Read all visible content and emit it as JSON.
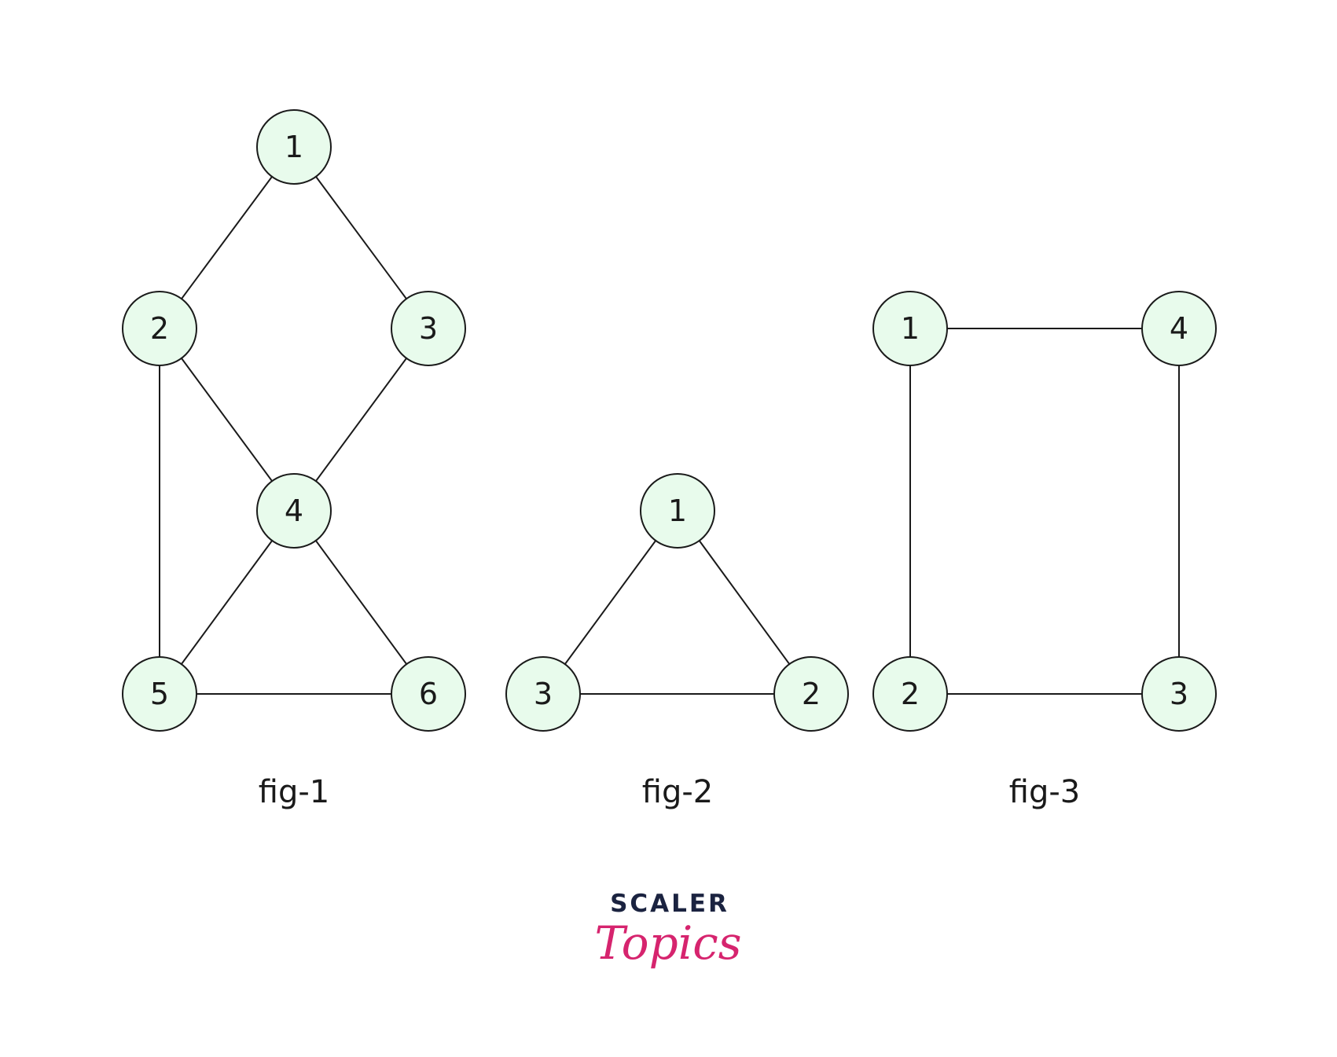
{
  "colors": {
    "node_fill": "#e8fbec",
    "stroke": "#1a1a1a",
    "brand_dark": "#1b2340",
    "brand_accent": "#d6246e"
  },
  "figures": [
    {
      "caption": "fig-1",
      "nodes": [
        {
          "id": "f1n1",
          "label": "1"
        },
        {
          "id": "f1n2",
          "label": "2"
        },
        {
          "id": "f1n3",
          "label": "3"
        },
        {
          "id": "f1n4",
          "label": "4"
        },
        {
          "id": "f1n5",
          "label": "5"
        },
        {
          "id": "f1n6",
          "label": "6"
        }
      ],
      "edges": [
        [
          "1",
          "2"
        ],
        [
          "1",
          "3"
        ],
        [
          "2",
          "4"
        ],
        [
          "3",
          "4"
        ],
        [
          "2",
          "5"
        ],
        [
          "4",
          "5"
        ],
        [
          "4",
          "6"
        ],
        [
          "5",
          "6"
        ]
      ]
    },
    {
      "caption": "fig-2",
      "nodes": [
        {
          "id": "f2n1",
          "label": "1"
        },
        {
          "id": "f2n3",
          "label": "3"
        },
        {
          "id": "f2n2",
          "label": "2"
        }
      ],
      "edges": [
        [
          "1",
          "3"
        ],
        [
          "1",
          "2"
        ],
        [
          "3",
          "2"
        ]
      ]
    },
    {
      "caption": "fig-3",
      "nodes": [
        {
          "id": "f3n1",
          "label": "1"
        },
        {
          "id": "f3n4",
          "label": "4"
        },
        {
          "id": "f3n2",
          "label": "2"
        },
        {
          "id": "f3n3",
          "label": "3"
        }
      ],
      "edges": [
        [
          "1",
          "4"
        ],
        [
          "1",
          "2"
        ],
        [
          "4",
          "3"
        ],
        [
          "2",
          "3"
        ]
      ]
    }
  ],
  "brand": {
    "top": "SCALER",
    "bottom": "Topics"
  }
}
